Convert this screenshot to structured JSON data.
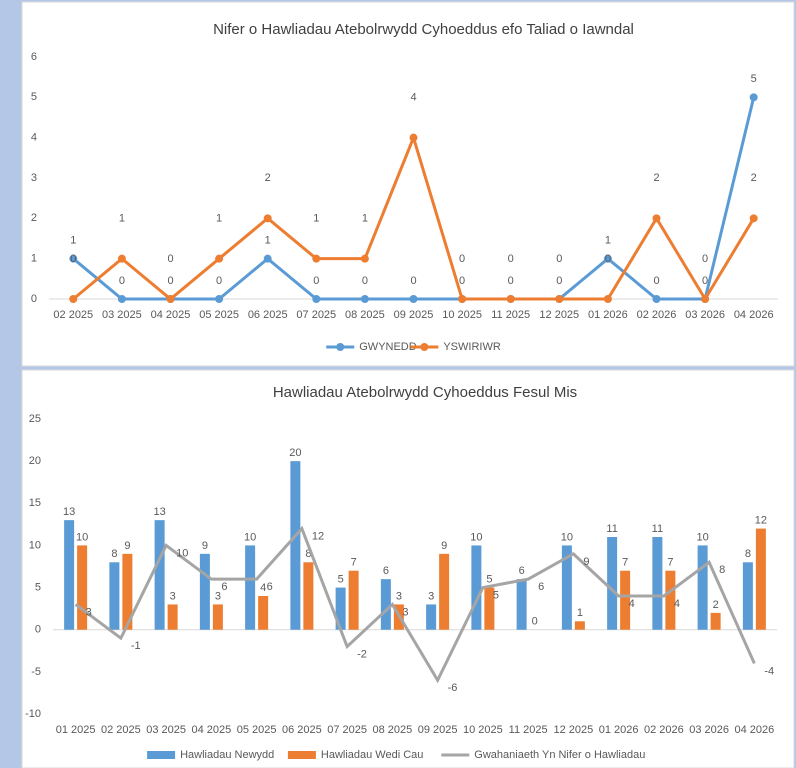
{
  "chart_data": [
    {
      "type": "line",
      "title": "Nifer o Hawliadau Atebolrwydd Cyhoeddus efo Taliad o Iawndal",
      "categories": [
        "02 2025",
        "03 2025",
        "04 2025",
        "05 2025",
        "06 2025",
        "07 2025",
        "08 2025",
        "09 2025",
        "10 2025",
        "11 2025",
        "12 2025",
        "01 2026",
        "02 2026",
        "03 2026",
        "04 2026"
      ],
      "series": [
        {
          "name": "GWYNEDD",
          "color": "#5b9bd5",
          "values": [
            1,
            0,
            0,
            0,
            1,
            0,
            0,
            0,
            0,
            0,
            0,
            1,
            0,
            0,
            5
          ]
        },
        {
          "name": "YSWIRIWR",
          "color": "#ed7d31",
          "values": [
            0,
            1,
            0,
            1,
            2,
            1,
            1,
            4,
            0,
            0,
            0,
            0,
            2,
            0,
            2
          ]
        }
      ],
      "ylim": [
        0,
        6
      ],
      "yticks": [
        0,
        1,
        2,
        3,
        4,
        5,
        6
      ],
      "grid": false
    },
    {
      "type": "bar",
      "title": "Hawliadau Atebolrwydd Cyhoeddus Fesul Mis",
      "categories": [
        "01 2025",
        "02 2025",
        "03 2025",
        "04 2025",
        "05 2025",
        "06 2025",
        "07 2025",
        "08 2025",
        "09 2025",
        "10 2025",
        "11 2025",
        "12 2025",
        "01 2026",
        "02 2026",
        "03 2026",
        "04 2026"
      ],
      "series": [
        {
          "name": "Hawliadau Newydd",
          "color": "#5b9bd5",
          "type": "bar",
          "values": [
            13,
            8,
            13,
            9,
            10,
            20,
            5,
            6,
            3,
            10,
            6,
            10,
            11,
            11,
            10,
            8
          ]
        },
        {
          "name": "Hawliadau Wedi Cau",
          "color": "#ed7d31",
          "type": "bar",
          "values": [
            10,
            9,
            3,
            3,
            4,
            8,
            7,
            3,
            9,
            5,
            0,
            1,
            7,
            7,
            2,
            12
          ]
        },
        {
          "name": "Gwahaniaeth Yn Nifer o Hawliadau",
          "color": "#a5a5a5",
          "type": "line",
          "values": [
            3,
            -1,
            10,
            6,
            6,
            12,
            -2,
            3,
            -6,
            5,
            6,
            9,
            4,
            4,
            8,
            -4
          ]
        }
      ],
      "ylim": [
        -10,
        25
      ],
      "yticks": [
        -10,
        -5,
        0,
        5,
        10,
        15,
        20,
        25
      ],
      "grid": false
    }
  ]
}
